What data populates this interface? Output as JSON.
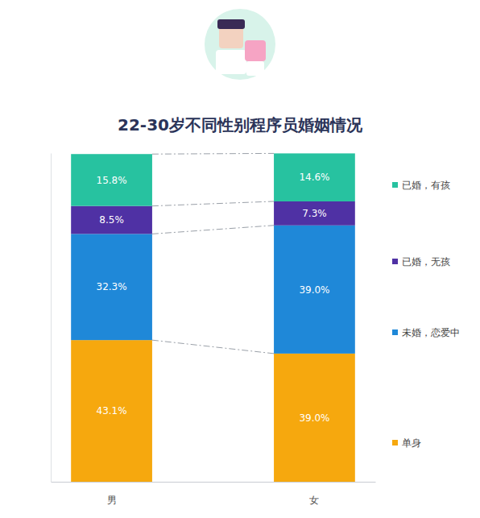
{
  "chart_data": {
    "type": "bar",
    "title": "22-30岁不同性别程序员婚姻情况",
    "categories": [
      "男",
      "女"
    ],
    "stacked": true,
    "data_labels": true,
    "tick_labels": "x",
    "legend": "right",
    "ylim": [
      0,
      100
    ],
    "series": [
      {
        "name": "单身",
        "color": "#f6a80e",
        "values": [
          43.1,
          39.0
        ],
        "value_labels": [
          "43.1%",
          "39.0%"
        ]
      },
      {
        "name": "未婚，恋爱中",
        "color": "#1f88d8",
        "values": [
          32.3,
          39.0
        ],
        "value_labels": [
          "32.3%",
          "39.0%"
        ]
      },
      {
        "name": "已婚，无孩",
        "color": "#4f31a4",
        "values": [
          8.5,
          7.3
        ],
        "value_labels": [
          "8.5%",
          "7.3%"
        ]
      },
      {
        "name": "已婚，有孩",
        "color": "#27c2a0",
        "values": [
          15.8,
          14.6
        ],
        "value_labels": [
          "15.8%",
          "14.6%"
        ]
      }
    ]
  }
}
